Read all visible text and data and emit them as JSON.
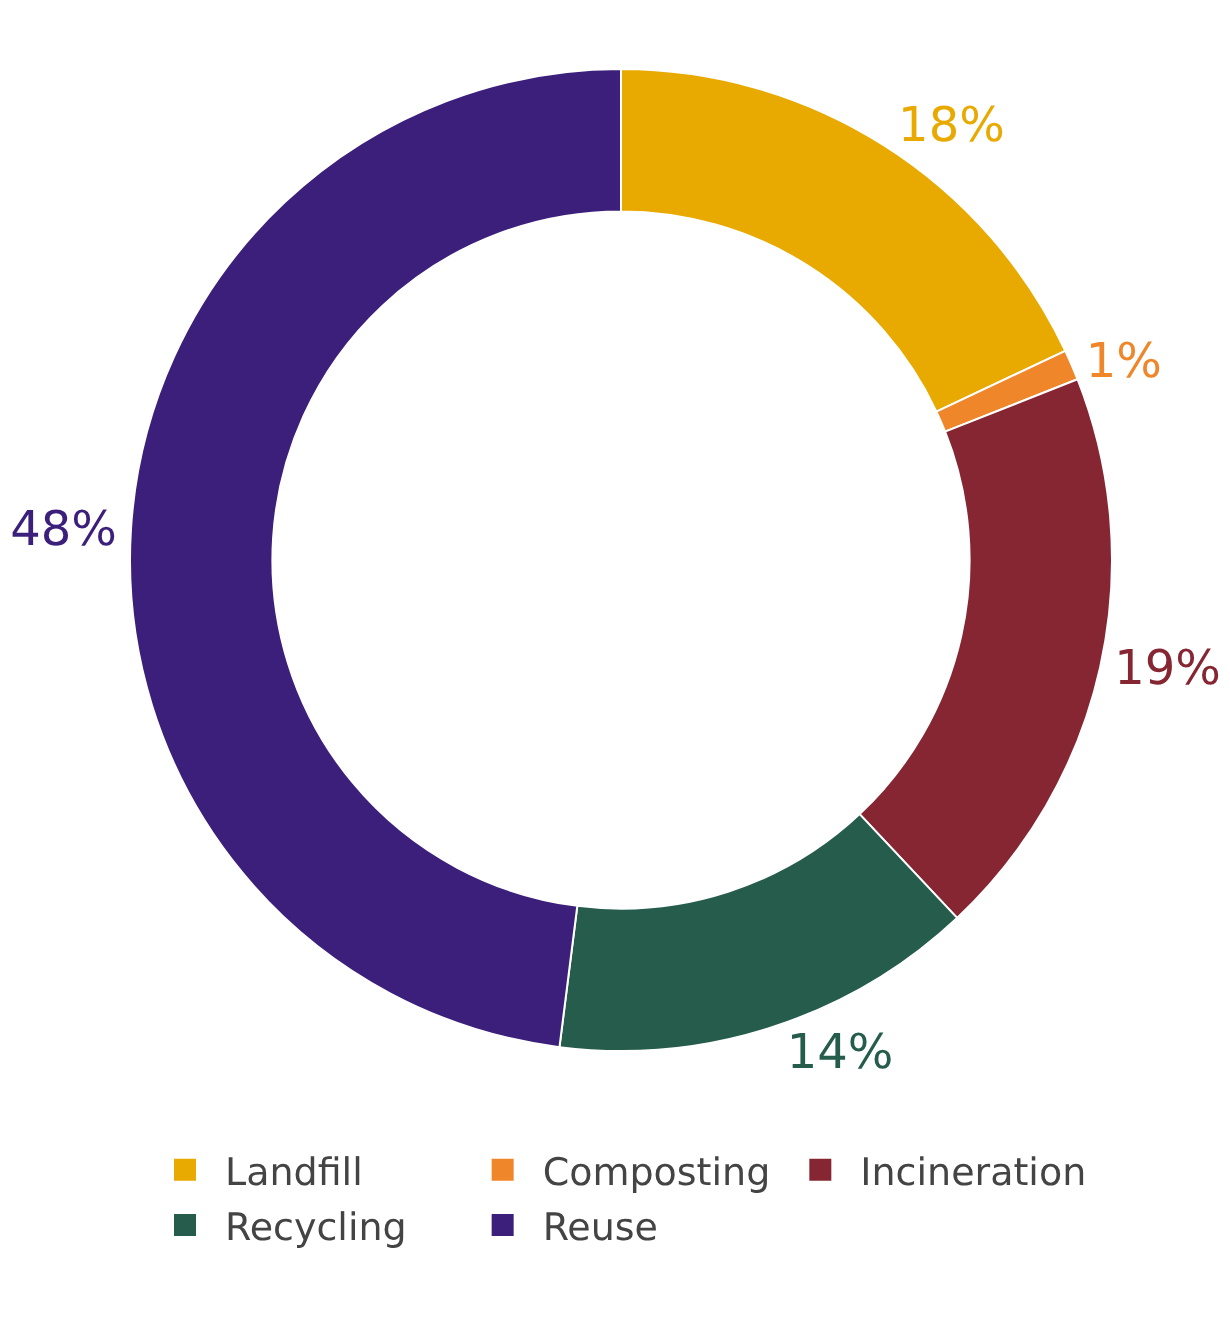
{
  "chart_data": {
    "type": "donut",
    "categories": [
      "Landfill",
      "Composting",
      "Incineration",
      "Recycling",
      "Reuse"
    ],
    "values": [
      18,
      1,
      19,
      14,
      48
    ],
    "value_labels": [
      "18%",
      "1%",
      "19%",
      "14%",
      "48%"
    ],
    "colors": [
      "#e8a900",
      "#f0862a",
      "#862632",
      "#255c4c",
      "#3b1f7b"
    ],
    "legend": "bottom"
  }
}
